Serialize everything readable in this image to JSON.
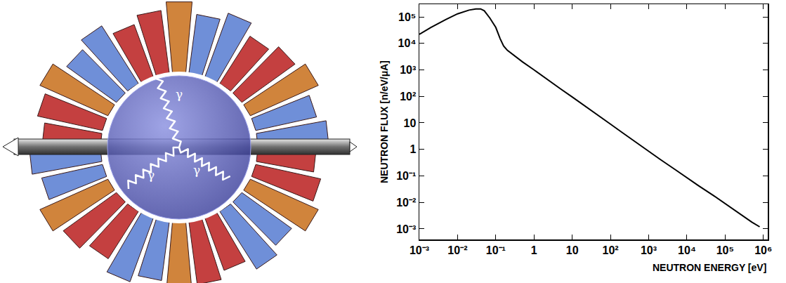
{
  "chart_data": {
    "type": "line",
    "x_label": "NEUTRON ENERGY [eV]",
    "y_label": "NEUTRON FLUX [n/eV/μA]",
    "log": true,
    "grid": false,
    "color": "#000000",
    "x": [
      0.001,
      0.002,
      0.005,
      0.01,
      0.02,
      0.03,
      0.04,
      0.05,
      0.07,
      0.1,
      0.13,
      0.16,
      0.2,
      0.3,
      0.5,
      1,
      2,
      5,
      10,
      20,
      50,
      100,
      200,
      500,
      1000,
      2000,
      5000,
      10000,
      20000,
      50000,
      100000,
      200000,
      500000,
      800000
    ],
    "values": [
      22000,
      40000,
      80000,
      130000,
      180000,
      200000,
      200000,
      170000,
      90000,
      40000,
      15000,
      8000,
      5500,
      3500,
      2000,
      1000,
      480,
      190,
      95,
      46,
      18,
      9,
      4.4,
      1.7,
      0.85,
      0.42,
      0.17,
      0.085,
      0.043,
      0.018,
      0.009,
      0.0045,
      0.0018,
      0.0012
    ],
    "xlim": [
      0.001,
      1300000
    ],
    "ylim": [
      0.0004,
      300000
    ],
    "xticks": [
      {
        "value": 0.001,
        "label": "10⁻³"
      },
      {
        "value": 0.01,
        "label": "10⁻²"
      },
      {
        "value": 0.1,
        "label": "10⁻¹"
      },
      1,
      10,
      {
        "value": 100,
        "label": "10²"
      },
      {
        "value": 1000,
        "label": "10³"
      },
      {
        "value": 10000,
        "label": "10⁴"
      },
      {
        "value": 100000,
        "label": "10⁵"
      },
      {
        "value": 1000000,
        "label": "10⁶"
      }
    ],
    "yticks": [
      {
        "value": 0.001,
        "label": "10⁻³"
      },
      {
        "value": 0.01,
        "label": "10⁻²"
      },
      {
        "value": 0.1,
        "label": "10⁻¹"
      },
      1,
      10,
      {
        "value": 100,
        "label": "10²"
      },
      {
        "value": 1000,
        "label": "10³"
      },
      {
        "value": 10000,
        "label": "10⁴"
      },
      {
        "value": 100000,
        "label": "10⁵"
      }
    ]
  },
  "illustration": {
    "gamma_labels": [
      "γ",
      "γ",
      "γ"
    ]
  }
}
